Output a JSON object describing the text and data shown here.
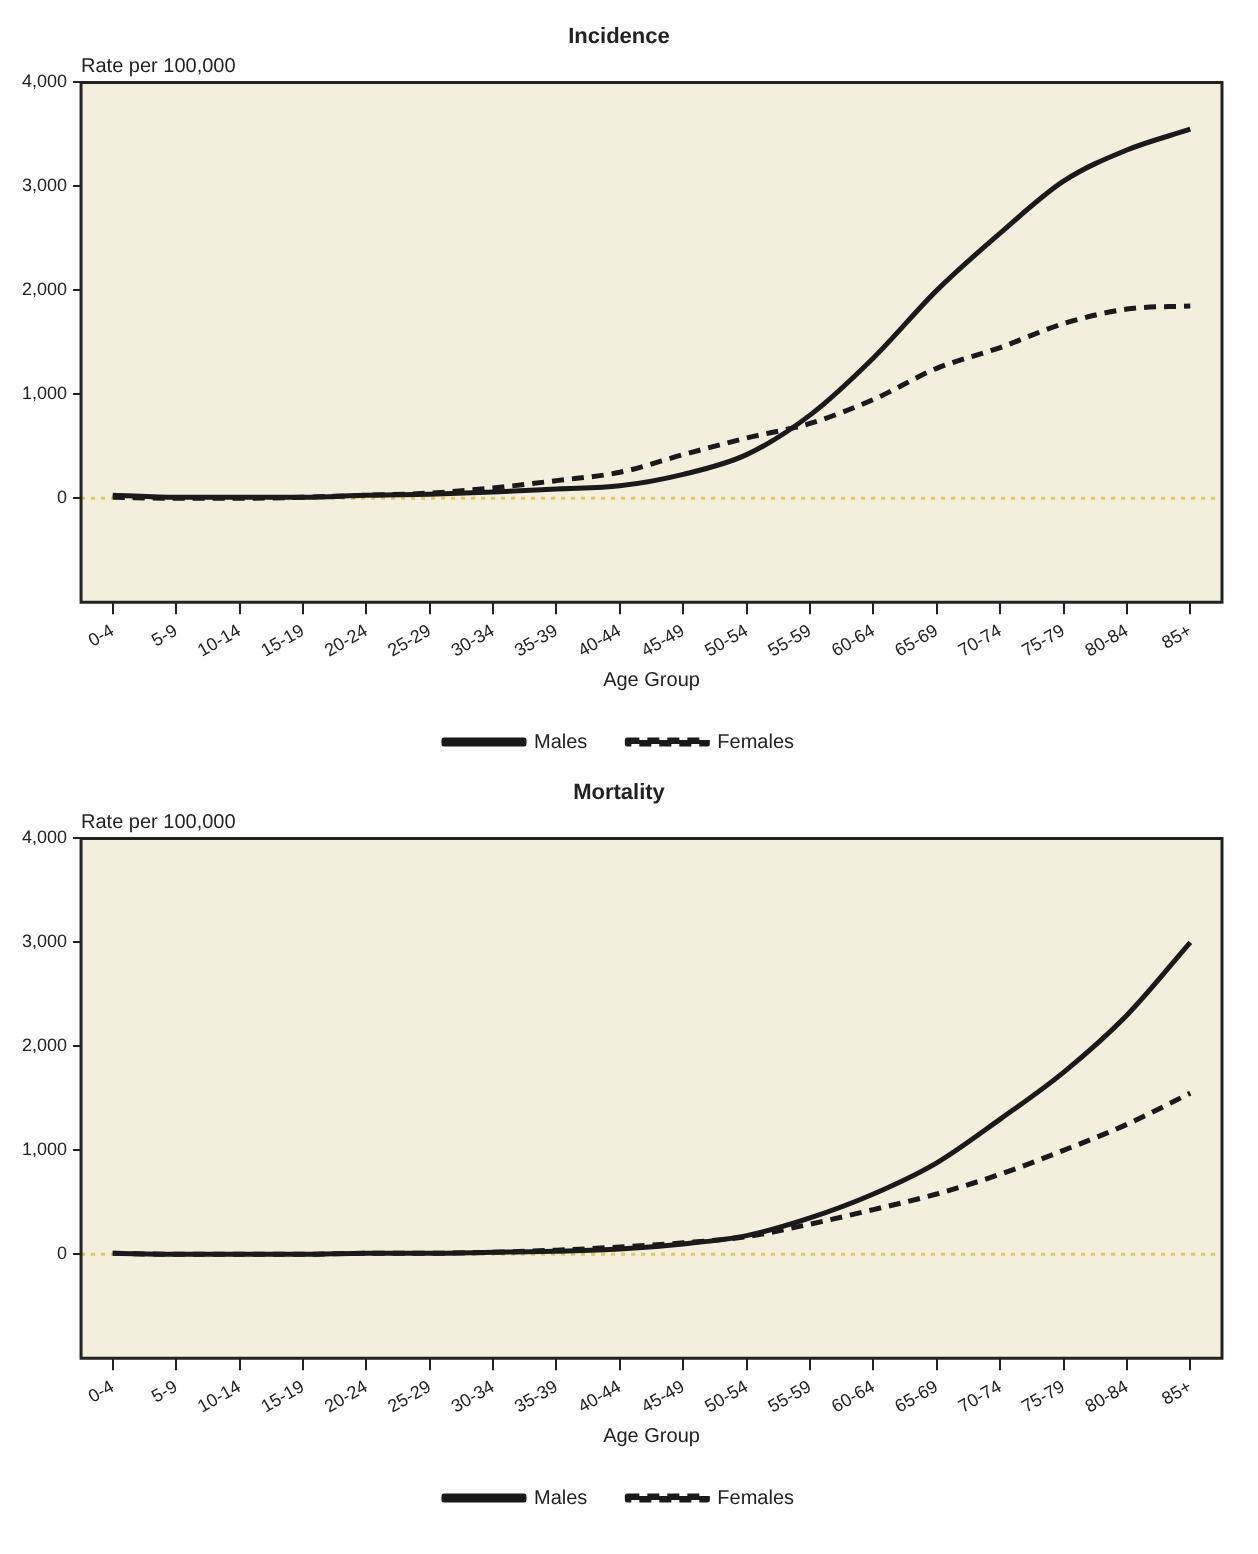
{
  "chart_data": [
    {
      "type": "line",
      "title": "Incidence",
      "ylabel": "Rate per 100,000",
      "xlabel": "Age Group",
      "categories": [
        "0-4",
        "5-9",
        "10-14",
        "15-19",
        "20-24",
        "25-29",
        "30-34",
        "35-39",
        "40-44",
        "45-49",
        "50-54",
        "55-59",
        "60-64",
        "65-69",
        "70-74",
        "75-79",
        "80-84",
        "85+"
      ],
      "series": [
        {
          "name": "Males",
          "color": "#1a1a1a",
          "line_style": "solid",
          "values": [
            30,
            10,
            10,
            10,
            30,
            40,
            60,
            90,
            120,
            230,
            420,
            800,
            1350,
            2000,
            2550,
            3050,
            3350,
            3550
          ]
        },
        {
          "name": "Females",
          "color": "#1a1a1a",
          "line_style": "dashed",
          "values": [
            10,
            0,
            0,
            10,
            30,
            50,
            100,
            170,
            250,
            420,
            580,
            720,
            950,
            1250,
            1450,
            1680,
            1820,
            1850
          ]
        }
      ],
      "ylim": [
        -1000,
        4000
      ],
      "yticks": [
        0,
        {
          "value": 1000,
          "label": "1,000"
        },
        {
          "value": 2000,
          "label": "2,000"
        },
        {
          "value": 3000,
          "label": "3,000"
        },
        {
          "value": 4000,
          "label": "4,000"
        }
      ],
      "grid": false,
      "legend": "bottom",
      "marker": "none",
      "ref_lines": [
        {
          "axis": "y",
          "value": 0,
          "color": "#e6c85a",
          "line_style": "dotted"
        }
      ]
    },
    {
      "type": "line",
      "title": "Mortality",
      "ylabel": "Rate per 100,000",
      "xlabel": "Age Group",
      "categories": [
        "0-4",
        "5-9",
        "10-14",
        "15-19",
        "20-24",
        "25-29",
        "30-34",
        "35-39",
        "40-44",
        "45-49",
        "50-54",
        "55-59",
        "60-64",
        "65-69",
        "70-74",
        "75-79",
        "80-84",
        "85+"
      ],
      "series": [
        {
          "name": "Males",
          "color": "#1a1a1a",
          "line_style": "solid",
          "values": [
            10,
            0,
            0,
            0,
            10,
            10,
            20,
            30,
            50,
            100,
            180,
            350,
            580,
            880,
            1300,
            1750,
            2300,
            3000
          ]
        },
        {
          "name": "Females",
          "color": "#1a1a1a",
          "line_style": "dashed",
          "values": [
            10,
            0,
            0,
            0,
            10,
            10,
            20,
            40,
            70,
            110,
            170,
            290,
            430,
            580,
            770,
            1000,
            1250,
            1550
          ]
        }
      ],
      "ylim": [
        -1000,
        4000
      ],
      "yticks": [
        0,
        {
          "value": 1000,
          "label": "1,000"
        },
        {
          "value": 2000,
          "label": "2,000"
        },
        {
          "value": 3000,
          "label": "3,000"
        },
        {
          "value": 4000,
          "label": "4,000"
        }
      ],
      "grid": false,
      "legend": "bottom",
      "marker": "none",
      "ref_lines": [
        {
          "axis": "y",
          "value": 0,
          "color": "#e6c85a",
          "line_style": "dotted"
        }
      ]
    }
  ]
}
